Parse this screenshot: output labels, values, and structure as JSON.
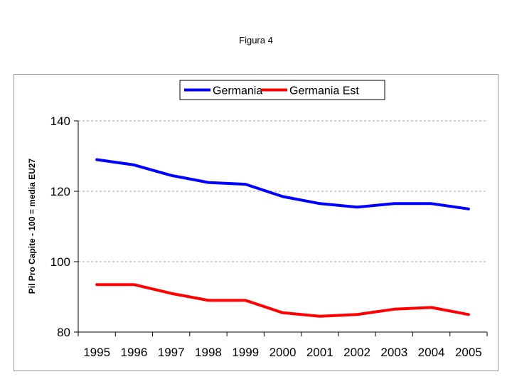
{
  "figure": {
    "title": "Figura 4"
  },
  "chart_data": {
    "type": "line",
    "title": "",
    "xlabel": "",
    "ylabel": "Pil Pro Capite - 100 = media EU27",
    "ylim": [
      80,
      140
    ],
    "yticks": [
      "80",
      "100",
      "120",
      "140"
    ],
    "categories": [
      "1995",
      "1996",
      "1997",
      "1998",
      "1999",
      "2000",
      "2001",
      "2002",
      "2003",
      "2004",
      "2005"
    ],
    "grid": "horizontal dashed",
    "legend": "top-center",
    "series": [
      {
        "name": "Germania",
        "color": "#0000ff",
        "values": [
          129,
          127.5,
          124.5,
          122.5,
          122,
          118.5,
          116.5,
          115.5,
          116.5,
          116.5,
          115
        ]
      },
      {
        "name": "Germania Est",
        "color": "#ff0000",
        "values": [
          93.5,
          93.5,
          91,
          89,
          89,
          85.5,
          84.5,
          85,
          86.5,
          87,
          85
        ]
      }
    ]
  }
}
